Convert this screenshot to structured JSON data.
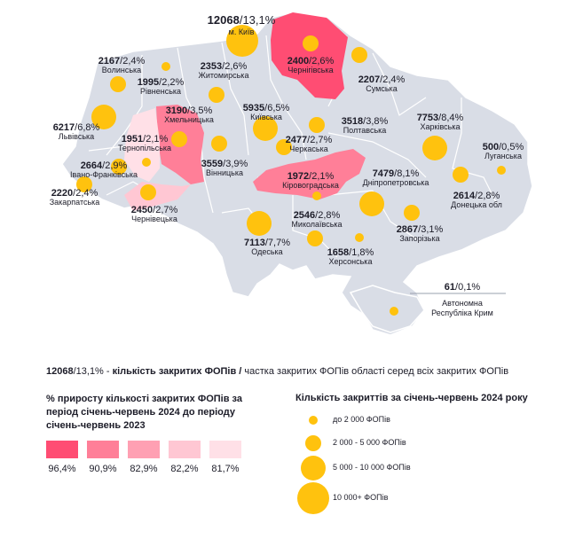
{
  "regions": [
    {
      "id": "kyiv-city",
      "value": "12068",
      "share": "13,1%",
      "name": "м. Київ"
    },
    {
      "id": "chernihiv",
      "value": "2400",
      "share": "2,6%",
      "name": "Чернігівська"
    },
    {
      "id": "volyn",
      "value": "2167",
      "share": "2,4%",
      "name": "Волинська"
    },
    {
      "id": "rivne",
      "value": "1995",
      "share": "2,2%",
      "name": "Рівненська"
    },
    {
      "id": "zhytomyr",
      "value": "2353",
      "share": "2,6%",
      "name": "Житомирська"
    },
    {
      "id": "sumy",
      "value": "2207",
      "share": "2,4%",
      "name": "Сумська"
    },
    {
      "id": "lviv",
      "value": "6217",
      "share": "6,8%",
      "name": "Львівська"
    },
    {
      "id": "khmelnytskyi",
      "value": "3190",
      "share": "3,5%",
      "name": "Хмельницька"
    },
    {
      "id": "kyiv-oblast",
      "value": "5935",
      "share": "6,5%",
      "name": "Київська"
    },
    {
      "id": "poltava",
      "value": "3518",
      "share": "3,8%",
      "name": "Полтавська"
    },
    {
      "id": "kharkiv",
      "value": "7753",
      "share": "8,4%",
      "name": "Харківська"
    },
    {
      "id": "ternopil",
      "value": "1951",
      "share": "2,1%",
      "name": "Тернопільська"
    },
    {
      "id": "cherkasy",
      "value": "2477",
      "share": "2,7%",
      "name": "Черкаська"
    },
    {
      "id": "luhansk",
      "value": "500",
      "share": "0,5%",
      "name": "Луганська"
    },
    {
      "id": "ivano-frankivsk",
      "value": "2664",
      "share": "2,9%",
      "name": "Івано-Франківська"
    },
    {
      "id": "vinnytsia",
      "value": "3559",
      "share": "3,9%",
      "name": "Вінницька"
    },
    {
      "id": "kirovohrad",
      "value": "1972",
      "share": "2,1%",
      "name": "Кіровоградська"
    },
    {
      "id": "dnipro",
      "value": "7479",
      "share": "8,1%",
      "name": "Дніпропетровська"
    },
    {
      "id": "zakarpattia",
      "value": "2220",
      "share": "2,4%",
      "name": "Закарпатська"
    },
    {
      "id": "donetsk",
      "value": "2614",
      "share": "2,8%",
      "name": "Донецька обл"
    },
    {
      "id": "chernivtsi",
      "value": "2450",
      "share": "2,7%",
      "name": "Чернівецька"
    },
    {
      "id": "mykolaiv",
      "value": "2546",
      "share": "2,8%",
      "name": "Миколаївська"
    },
    {
      "id": "zaporizhzhia",
      "value": "2867",
      "share": "3,1%",
      "name": "Запорізька"
    },
    {
      "id": "odesa",
      "value": "7113",
      "share": "7,7%",
      "name": "Одеська"
    },
    {
      "id": "kherson",
      "value": "1658",
      "share": "1,8%",
      "name": "Херсонська"
    },
    {
      "id": "crimea",
      "value": "61",
      "share": "0,1%",
      "name": "Автономна Республіка Крим"
    }
  ],
  "legend_line": {
    "value": "12068",
    "share": "/13,1% - ",
    "bold_text": "кількість закритих ФОПів /",
    "rest": " частка закритих ФОПів області серед всіх закритих ФОПів"
  },
  "growth_legend": {
    "title": "% приросту кількості закритих ФОПів за період січень-червень 2024 до періоду січень-червень 2023",
    "items": [
      {
        "label": "96,4%",
        "color": "#ff4d73"
      },
      {
        "label": "90,9%",
        "color": "#ff7f98"
      },
      {
        "label": "82,9%",
        "color": "#ffa0b3"
      },
      {
        "label": "82,2%",
        "color": "#ffc7d3"
      },
      {
        "label": "81,7%",
        "color": "#ffe0e7"
      }
    ]
  },
  "size_legend": {
    "title": "Кількість закриттів за січень-червень 2024 року",
    "items": [
      {
        "label": "до 2 000 ФОПів"
      },
      {
        "label": "2 000 - 5 000 ФОПів"
      },
      {
        "label": "5 000 - 10 000 ФОПів"
      },
      {
        "label": "10 000+ ФОПів"
      }
    ]
  },
  "colors": {
    "land": "#d9dde6",
    "border": "#ffffff",
    "bubble": "#ffc20e",
    "text": "#1c1c28"
  }
}
